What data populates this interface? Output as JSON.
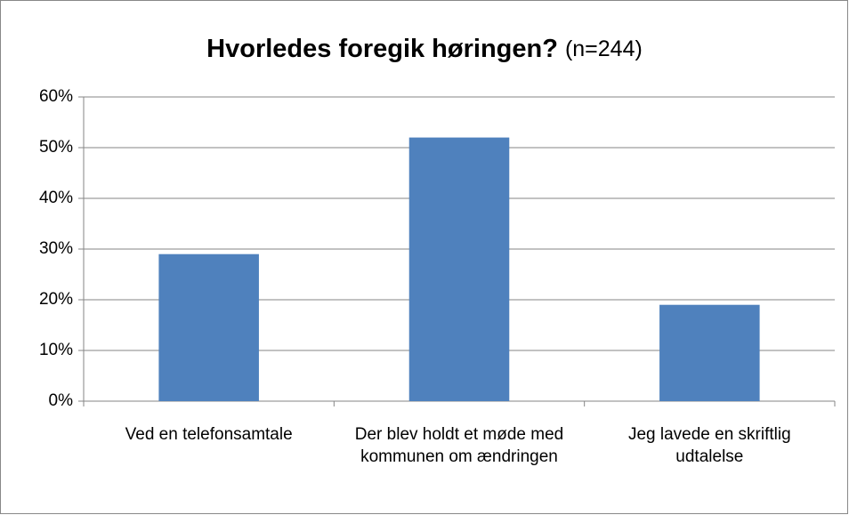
{
  "chart_data": {
    "type": "bar",
    "title": "Hvorledes foregik høringen?",
    "subtitle": "(n=244)",
    "categories": [
      "Ved en telefonsamtale",
      "Der blev holdt et møde med kommunen om ændringen",
      "Jeg lavede en skriftlig udtalelse"
    ],
    "values": [
      29,
      52,
      19
    ],
    "color": "#4f81bd",
    "ylim": [
      0,
      60
    ],
    "yticks": [
      {
        "value": 0,
        "label": "0%"
      },
      {
        "value": 10,
        "label": "10%"
      },
      {
        "value": 20,
        "label": "20%"
      },
      {
        "value": 30,
        "label": "30%"
      },
      {
        "value": 40,
        "label": "40%"
      },
      {
        "value": 50,
        "label": "50%"
      },
      {
        "value": 60,
        "label": "60%"
      }
    ],
    "grid": true
  }
}
